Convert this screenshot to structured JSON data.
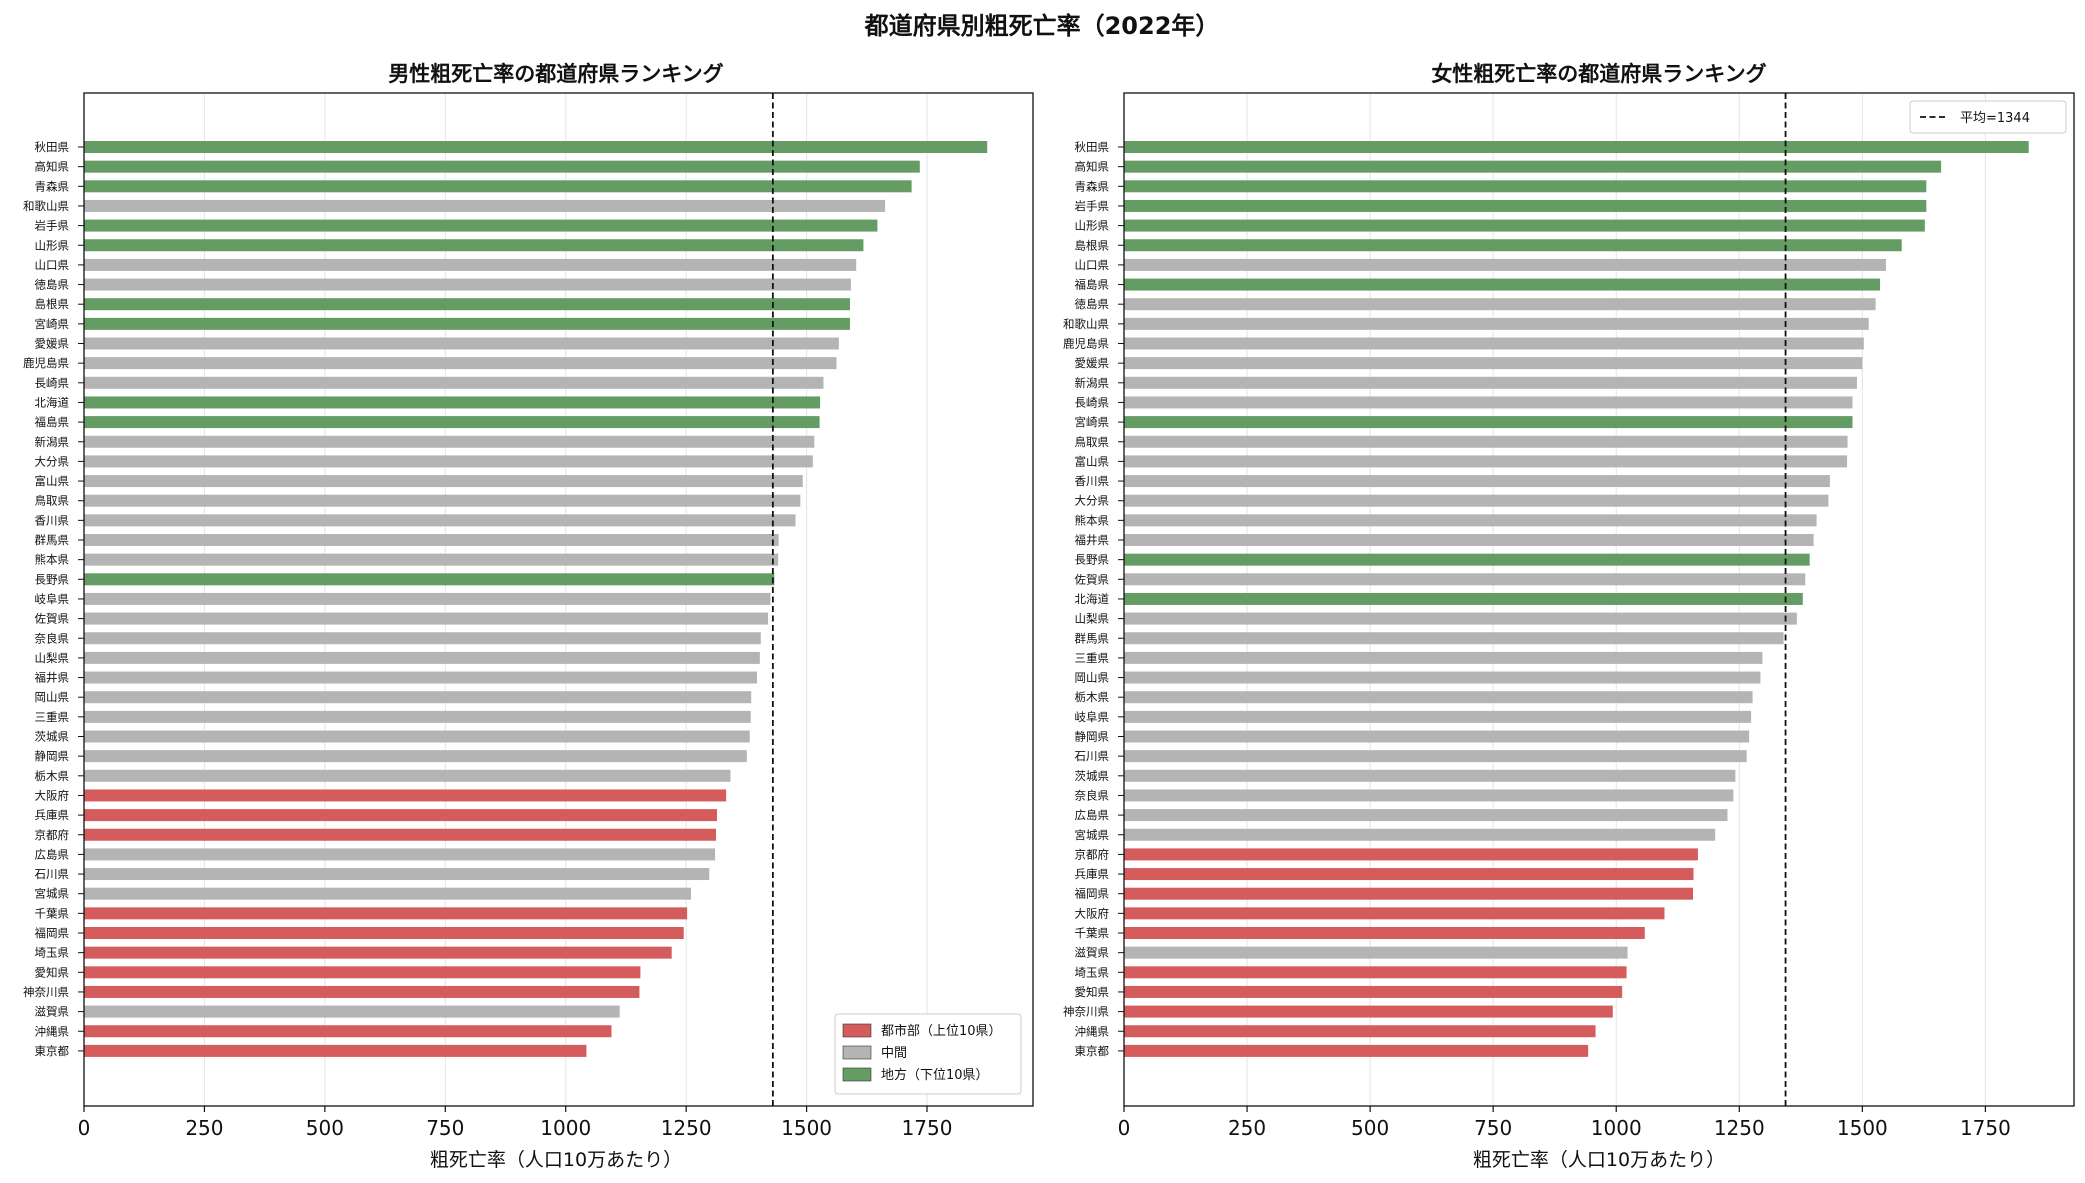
{
  "figure_title": "都道府県別粗死亡率（2022年）",
  "colors": {
    "urban": "#d45c5c",
    "middle": "#b4b4b4",
    "rural": "#659c64",
    "mean_line": "#111111"
  },
  "chart_data": [
    {
      "type": "bar",
      "orientation": "horizontal",
      "title": "男性粗死亡率の都道府県ランキング",
      "xlabel": "粗死亡率（人口10万あたり）",
      "xlim": [
        0,
        1970
      ],
      "xticks": [
        0,
        250,
        500,
        750,
        1000,
        1250,
        1500,
        1750
      ],
      "grid": true,
      "mean": 1430,
      "mean_label": "",
      "legend_position": "lower-right",
      "legend": [
        {
          "key": "urban",
          "label": "都市部（上位10県）"
        },
        {
          "key": "middle",
          "label": "中間"
        },
        {
          "key": "rural",
          "label": "地方（下位10県）"
        }
      ],
      "categories": [
        "秋田県",
        "高知県",
        "青森県",
        "和歌山県",
        "岩手県",
        "山形県",
        "山口県",
        "徳島県",
        "島根県",
        "宮崎県",
        "愛媛県",
        "鹿児島県",
        "長崎県",
        "北海道",
        "福島県",
        "新潟県",
        "大分県",
        "富山県",
        "鳥取県",
        "香川県",
        "群馬県",
        "熊本県",
        "長野県",
        "岐阜県",
        "佐賀県",
        "奈良県",
        "山梨県",
        "福井県",
        "岡山県",
        "三重県",
        "茨城県",
        "静岡県",
        "栃木県",
        "大阪府",
        "兵庫県",
        "京都府",
        "広島県",
        "石川県",
        "宮城県",
        "千葉県",
        "福岡県",
        "埼玉県",
        "愛知県",
        "神奈川県",
        "滋賀県",
        "沖縄県",
        "東京都"
      ],
      "values": [
        1875,
        1735,
        1718,
        1663,
        1647,
        1618,
        1603,
        1592,
        1590,
        1590,
        1567,
        1562,
        1535,
        1528,
        1527,
        1516,
        1513,
        1492,
        1487,
        1477,
        1442,
        1441,
        1433,
        1425,
        1420,
        1405,
        1403,
        1397,
        1385,
        1384,
        1382,
        1376,
        1342,
        1333,
        1314,
        1312,
        1310,
        1298,
        1260,
        1252,
        1245,
        1220,
        1155,
        1153,
        1112,
        1095,
        1043
      ],
      "groups": [
        "rural",
        "rural",
        "rural",
        "middle",
        "rural",
        "rural",
        "middle",
        "middle",
        "rural",
        "rural",
        "middle",
        "middle",
        "middle",
        "rural",
        "rural",
        "middle",
        "middle",
        "middle",
        "middle",
        "middle",
        "middle",
        "middle",
        "rural",
        "middle",
        "middle",
        "middle",
        "middle",
        "middle",
        "middle",
        "middle",
        "middle",
        "middle",
        "middle",
        "urban",
        "urban",
        "urban",
        "middle",
        "middle",
        "middle",
        "urban",
        "urban",
        "urban",
        "urban",
        "urban",
        "middle",
        "urban",
        "urban"
      ]
    },
    {
      "type": "bar",
      "orientation": "horizontal",
      "title": "女性粗死亡率の都道府県ランキング",
      "xlabel": "粗死亡率（人口10万あたり）",
      "xlim": [
        0,
        1930
      ],
      "xticks": [
        0,
        250,
        500,
        750,
        1000,
        1250,
        1500,
        1750
      ],
      "grid": true,
      "mean": 1344,
      "mean_label": "平均=1344",
      "legend_position": "top-right",
      "legend": [],
      "categories": [
        "秋田県",
        "高知県",
        "青森県",
        "岩手県",
        "山形県",
        "島根県",
        "山口県",
        "福島県",
        "徳島県",
        "和歌山県",
        "鹿児島県",
        "愛媛県",
        "新潟県",
        "長崎県",
        "宮崎県",
        "鳥取県",
        "富山県",
        "香川県",
        "大分県",
        "熊本県",
        "福井県",
        "長野県",
        "佐賀県",
        "北海道",
        "山梨県",
        "群馬県",
        "三重県",
        "岡山県",
        "栃木県",
        "岐阜県",
        "静岡県",
        "石川県",
        "茨城県",
        "奈良県",
        "広島県",
        "宮城県",
        "京都府",
        "兵庫県",
        "福岡県",
        "大阪府",
        "千葉県",
        "滋賀県",
        "埼玉県",
        "愛知県",
        "神奈川県",
        "沖縄県",
        "東京都"
      ],
      "values": [
        1838,
        1660,
        1630,
        1630,
        1627,
        1580,
        1548,
        1536,
        1527,
        1513,
        1503,
        1500,
        1489,
        1480,
        1480,
        1470,
        1469,
        1434,
        1431,
        1407,
        1401,
        1393,
        1384,
        1379,
        1367,
        1340,
        1297,
        1293,
        1277,
        1274,
        1270,
        1265,
        1242,
        1238,
        1226,
        1201,
        1166,
        1157,
        1156,
        1098,
        1058,
        1023,
        1021,
        1012,
        993,
        958,
        943
      ],
      "groups": [
        "rural",
        "rural",
        "rural",
        "rural",
        "rural",
        "rural",
        "middle",
        "rural",
        "middle",
        "middle",
        "middle",
        "middle",
        "middle",
        "middle",
        "rural",
        "middle",
        "middle",
        "middle",
        "middle",
        "middle",
        "middle",
        "rural",
        "middle",
        "rural",
        "middle",
        "middle",
        "middle",
        "middle",
        "middle",
        "middle",
        "middle",
        "middle",
        "middle",
        "middle",
        "middle",
        "middle",
        "urban",
        "urban",
        "urban",
        "urban",
        "urban",
        "middle",
        "urban",
        "urban",
        "urban",
        "urban",
        "urban"
      ]
    }
  ]
}
